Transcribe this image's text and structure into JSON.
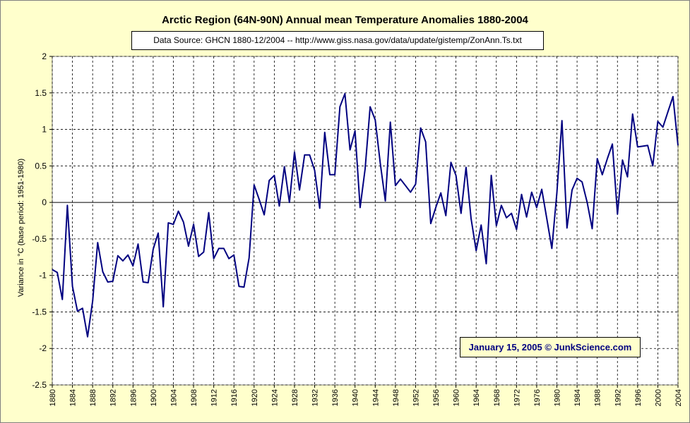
{
  "chart_data": {
    "type": "line",
    "title": "Arctic Region (64N-90N) Annual mean Temperature Anomalies 1880-2004",
    "subtitle": "Data Source: GHCN 1880-12/2004 -- http://www.giss.nasa.gov/data/update/gistemp/ZonAnn.Ts.txt",
    "annotation": "January 15, 2005 © JunkScience.com",
    "xlabel": "",
    "ylabel": "Variance in °C (base period: 1951-1980)",
    "xlim": [
      1880,
      2004
    ],
    "ylim": [
      -2.5,
      2
    ],
    "yticks": [
      2,
      1.5,
      1,
      0.5,
      0,
      -0.5,
      -1,
      -1.5,
      -2,
      -2.5
    ],
    "ytick_labels": [
      "2",
      "1.5",
      "1",
      "0.5",
      "0",
      "-0.5",
      "-1",
      "-1.5",
      "-2",
      "-2.5"
    ],
    "xticks": [
      1880,
      1884,
      1888,
      1892,
      1896,
      1900,
      1904,
      1908,
      1912,
      1916,
      1920,
      1924,
      1928,
      1932,
      1936,
      1940,
      1944,
      1948,
      1952,
      1956,
      1960,
      1964,
      1968,
      1972,
      1976,
      1980,
      1984,
      1988,
      1992,
      1996,
      2000,
      2004
    ],
    "xtick_labels": [
      "1880",
      "1884",
      "1888",
      "1892",
      "1896",
      "1900",
      "1904",
      "1908",
      "1912",
      "1916",
      "1920",
      "1924",
      "1928",
      "1932",
      "1936",
      "1940",
      "1944",
      "1948",
      "1952",
      "1956",
      "1960",
      "1964",
      "1968",
      "1972",
      "1976",
      "1980",
      "1984",
      "1988",
      "1992",
      "1996",
      "2000",
      "2004"
    ],
    "grid": true,
    "colors": {
      "line": "#000080",
      "background": "#ffffcc",
      "plot_background": "#ffffff",
      "credit_text": "#000080"
    },
    "series": [
      {
        "name": "",
        "x": [
          1880,
          1881,
          1882,
          1883,
          1884,
          1885,
          1886,
          1887,
          1888,
          1889,
          1890,
          1891,
          1892,
          1893,
          1894,
          1895,
          1896,
          1897,
          1898,
          1899,
          1900,
          1901,
          1902,
          1903,
          1904,
          1905,
          1906,
          1907,
          1908,
          1909,
          1910,
          1911,
          1912,
          1913,
          1914,
          1915,
          1916,
          1917,
          1918,
          1919,
          1920,
          1921,
          1922,
          1923,
          1924,
          1925,
          1926,
          1927,
          1928,
          1929,
          1930,
          1931,
          1932,
          1933,
          1934,
          1935,
          1936,
          1937,
          1938,
          1939,
          1940,
          1941,
          1942,
          1943,
          1944,
          1945,
          1946,
          1947,
          1948,
          1949,
          1950,
          1951,
          1952,
          1953,
          1954,
          1955,
          1956,
          1957,
          1958,
          1959,
          1960,
          1961,
          1962,
          1963,
          1964,
          1965,
          1966,
          1967,
          1968,
          1969,
          1970,
          1971,
          1972,
          1973,
          1974,
          1975,
          1976,
          1977,
          1978,
          1979,
          1980,
          1981,
          1982,
          1983,
          1984,
          1985,
          1986,
          1987,
          1988,
          1989,
          1990,
          1991,
          1992,
          1993,
          1994,
          1995,
          1996,
          1997,
          1998,
          1999,
          2000,
          2001,
          2002,
          2003,
          2004
        ],
        "y": [
          -0.92,
          -0.96,
          -1.33,
          -0.04,
          -1.15,
          -1.49,
          -1.45,
          -1.84,
          -1.35,
          -0.55,
          -0.95,
          -1.09,
          -1.08,
          -0.73,
          -0.8,
          -0.72,
          -0.87,
          -0.57,
          -1.09,
          -1.1,
          -0.64,
          -0.42,
          -1.43,
          -0.28,
          -0.3,
          -0.12,
          -0.27,
          -0.6,
          -0.3,
          -0.74,
          -0.68,
          -0.14,
          -0.77,
          -0.63,
          -0.63,
          -0.77,
          -0.72,
          -1.15,
          -1.16,
          -0.76,
          0.24,
          0.04,
          -0.17,
          0.3,
          0.37,
          -0.05,
          0.49,
          0.0,
          0.69,
          0.17,
          0.65,
          0.65,
          0.44,
          -0.08,
          0.96,
          0.38,
          0.38,
          1.31,
          1.49,
          0.72,
          0.98,
          -0.07,
          0.46,
          1.31,
          1.13,
          0.54,
          0.02,
          1.1,
          0.23,
          0.32,
          0.23,
          0.14,
          0.25,
          1.02,
          0.83,
          -0.29,
          -0.07,
          0.13,
          -0.18,
          0.55,
          0.37,
          -0.15,
          0.48,
          -0.22,
          -0.66,
          -0.31,
          -0.84,
          0.37,
          -0.32,
          -0.04,
          -0.21,
          -0.15,
          -0.37,
          0.11,
          -0.2,
          0.14,
          -0.07,
          0.18,
          -0.22,
          -0.63,
          0.13,
          1.12,
          -0.35,
          0.17,
          0.33,
          0.28,
          0.0,
          -0.36,
          0.6,
          0.38,
          0.6,
          0.8,
          -0.16,
          0.58,
          0.35,
          1.21,
          0.76,
          0.77,
          0.78,
          0.5,
          1.11,
          1.03,
          1.24,
          1.45,
          0.78
        ]
      }
    ]
  }
}
